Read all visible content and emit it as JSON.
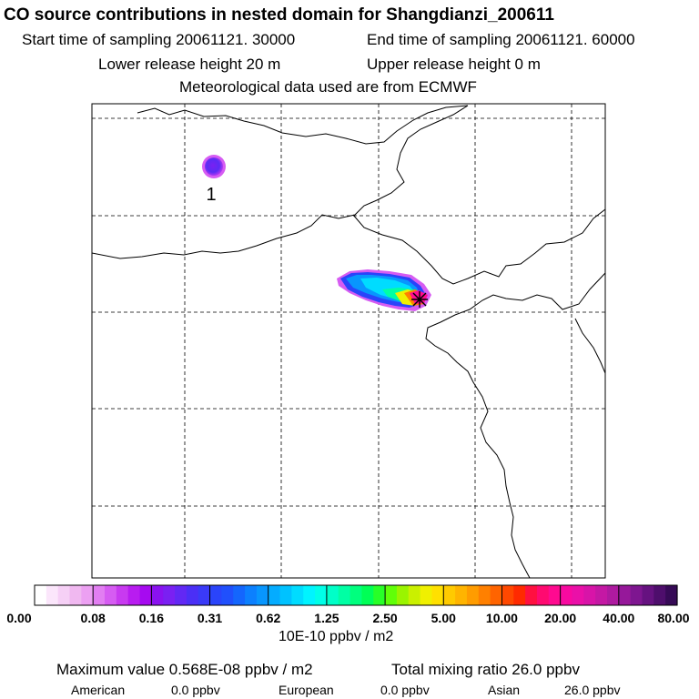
{
  "title": "CO  source contributions in nested domain for Shangdianzi_200611",
  "header": {
    "start_label": "Start time of sampling 20061121. 30000",
    "end_label": "End time of sampling 20061121. 60000",
    "lower_label": "Lower release height   20 m",
    "upper_label": "Upper release height    0 m",
    "met_label": "Meteorological data used are from ECMWF"
  },
  "chart_data": {
    "type": "heatmap",
    "title": "CO  source contributions in nested domain for Shangdianzi_200611",
    "colorbar": {
      "tick_labels": [
        "0.00",
        "0.08",
        "0.16",
        "0.31",
        "0.62",
        "1.25",
        "2.50",
        "5.00",
        "10.00",
        "20.00",
        "40.00",
        "80.00"
      ],
      "units": "10E-10 ppbv / m2",
      "colors": [
        "#ffffff",
        "#fbe6fb",
        "#f6d0f6",
        "#f0b8f0",
        "#eca0f2",
        "#e27ef2",
        "#d65cf2",
        "#c83af0",
        "#b81cf0",
        "#a60af0",
        "#8a12f0",
        "#7a20f2",
        "#6228f4",
        "#4b2ff6",
        "#3a3af8",
        "#2a44fa",
        "#2050fc",
        "#1466fd",
        "#0c80fe",
        "#0896fe",
        "#04acff",
        "#00c2ff",
        "#00dcff",
        "#00f4ff",
        "#00ffe8",
        "#00ffc8",
        "#00ffa4",
        "#00ff7e",
        "#00ff56",
        "#28ff28",
        "#60ff08",
        "#9af400",
        "#caf000",
        "#f0f000",
        "#ffe000",
        "#ffca00",
        "#ffb400",
        "#ff9c00",
        "#ff8000",
        "#ff6400",
        "#ff4800",
        "#ff2a00",
        "#ff1040",
        "#ff0a70",
        "#ff0a90",
        "#f80aa0",
        "#ea10a8",
        "#d814a8",
        "#c418a4",
        "#ae1aa0",
        "#96189a",
        "#7e1690",
        "#661280",
        "#4e0e6c",
        "#360a56"
      ]
    },
    "sources": [
      {
        "label": "1",
        "description": "small isolated plume"
      },
      {
        "label": "",
        "description": "main plume near Shangdianzi"
      }
    ],
    "grid": true
  },
  "summary": {
    "max_label": "Maximum value  0.568E-08 ppbv / m2",
    "total_label": "Total mixing ratio       26.0 ppbv",
    "regions": [
      {
        "name": "American",
        "value": "0.0 ppbv"
      },
      {
        "name": "European",
        "value": "0.0 ppbv"
      },
      {
        "name": "Asian",
        "value": "26.0 ppbv"
      }
    ]
  }
}
